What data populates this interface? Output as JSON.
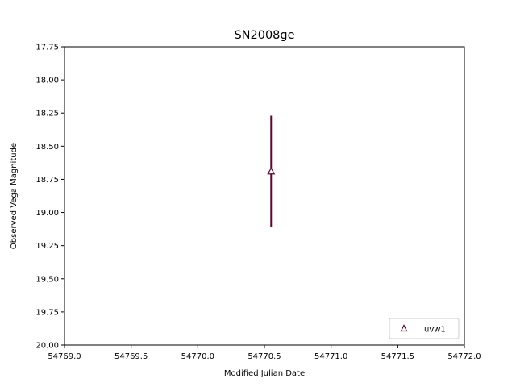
{
  "chart_data": {
    "type": "scatter",
    "title": "SN2008ge",
    "xlabel": "Modified Julian Date",
    "ylabel": "Observed Vega Magnitude",
    "xlim": [
      54769.0,
      54772.0
    ],
    "ylim": [
      17.75,
      20.0
    ],
    "y_inverted": true,
    "x_ticks": [
      "54769.0",
      "54769.5",
      "54770.0",
      "54770.5",
      "54771.0",
      "54771.5",
      "54772.0"
    ],
    "y_ticks": [
      "17.75",
      "18.00",
      "18.25",
      "18.50",
      "18.75",
      "19.00",
      "19.25",
      "19.50",
      "19.75",
      "20.00"
    ],
    "grid": false,
    "legend_position": "lower-right",
    "series": [
      {
        "name": "uvw1",
        "marker": "triangle-up-open",
        "color": "#5a0a2e",
        "points": [
          {
            "x": 54770.55,
            "y": 18.69,
            "yerr": 0.42
          }
        ]
      }
    ]
  }
}
